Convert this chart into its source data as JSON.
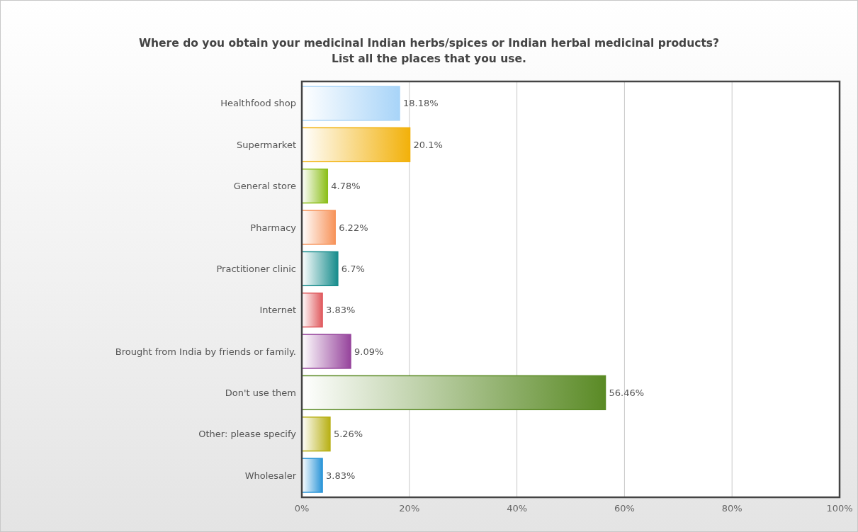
{
  "chart_data": {
    "type": "bar",
    "orientation": "horizontal",
    "title": "Where do you obtain your medicinal Indian herbs/spices or Indian herbal medicinal products?\nList all the places that you use.",
    "categories": [
      "Healthfood shop",
      "Supermarket",
      "General store",
      "Pharmacy",
      "Practitioner clinic",
      "Internet",
      "Brought from India by friends or family.",
      "Don't use them",
      "Other: please specify",
      "Wholesaler"
    ],
    "values": [
      18.18,
      20.1,
      4.78,
      6.22,
      6.7,
      3.83,
      9.09,
      56.46,
      5.26,
      3.83
    ],
    "colors": [
      "#a8d4f8",
      "#f2b10a",
      "#8cbf1a",
      "#f7935a",
      "#168c8c",
      "#e05a5e",
      "#96449c",
      "#5a8a25",
      "#b8b014",
      "#2a95d8"
    ],
    "value_labels": [
      "18.18%",
      "20.1%",
      "4.78%",
      "6.22%",
      "6.7%",
      "3.83%",
      "9.09%",
      "56.46%",
      "5.26%",
      "3.83%"
    ],
    "xlim": [
      0,
      100
    ],
    "xticks": [
      {
        "value": 0,
        "label": "0%"
      },
      {
        "value": 20,
        "label": "20%"
      },
      {
        "value": 40,
        "label": "40%"
      },
      {
        "value": 60,
        "label": "60%"
      },
      {
        "value": 80,
        "label": "80%"
      },
      {
        "value": 100,
        "label": "100%"
      }
    ],
    "grid": "x"
  }
}
